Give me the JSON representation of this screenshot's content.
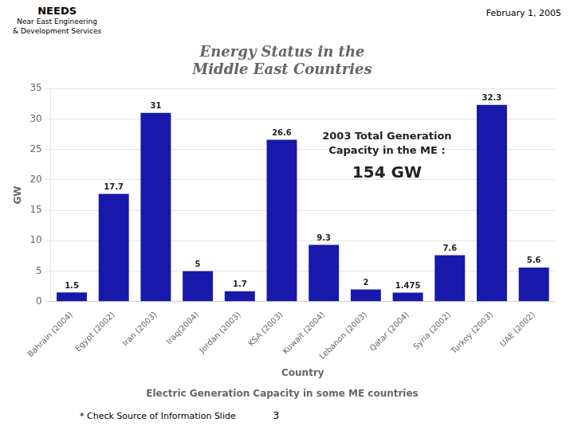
{
  "chart_data": {
    "type": "bar",
    "title": [
      "Energy Status in the",
      "Middle East Countries"
    ],
    "subtitle": "Electric Generation Capacity in some ME countries",
    "xlabel": "Country",
    "ylabel": "GW",
    "categories": [
      "Bahrain (2004)",
      "Egypt (2002)",
      "Iran (2003)",
      "Iraq(2004)",
      "Jordan (2003)",
      "KSA (2003)",
      "Kuwait (2004)",
      "Lebanon (2003)",
      "Qatar (2004)",
      "Syria (2002)",
      "Turkey (2003)",
      "UAE (2002)"
    ],
    "values": [
      1.5,
      17.7,
      31.0,
      5.0,
      1.7,
      26.6,
      9.3,
      2.0,
      1.475,
      7.6,
      32.3,
      5.6
    ],
    "value_labels": [
      "1.5",
      "17.7",
      "31",
      "5",
      "1.7",
      "26.6",
      "9.3",
      "2",
      "1.475",
      "7.6",
      "32.3",
      "5.6"
    ],
    "data_labels": true,
    "color": "#1818aa",
    "ylim": [
      0,
      35
    ],
    "yticks": [
      0,
      5,
      10,
      15,
      20,
      25,
      30,
      35
    ],
    "grid": true,
    "annotations": [
      "NEEDS",
      "Near East Engineering",
      "& Development Services",
      "February 1, 2005",
      "2003 Total Generation",
      "Capacity in the ME :",
      "154 GW",
      "* Check Source of Information Slide",
      "3"
    ]
  }
}
